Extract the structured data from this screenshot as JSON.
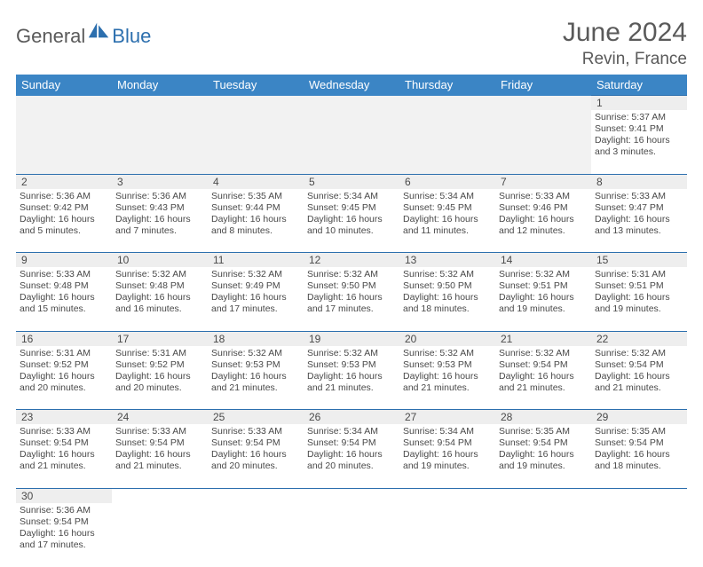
{
  "brand": {
    "part1": "General",
    "part2": "Blue"
  },
  "header": {
    "month": "June 2024",
    "location": "Revin, France"
  },
  "colors": {
    "header_bg": "#3b85c5",
    "header_text": "#ffffff",
    "rule": "#2c6fae",
    "daynum_bg": "#eeeeee",
    "text": "#494949",
    "logo_gray": "#5a5a5a",
    "logo_blue": "#2c6fae"
  },
  "dow": [
    "Sunday",
    "Monday",
    "Tuesday",
    "Wednesday",
    "Thursday",
    "Friday",
    "Saturday"
  ],
  "grid": {
    "rows": 6,
    "cols": 7,
    "first_day_index": 6,
    "days_in_month": 30
  },
  "days": {
    "1": {
      "sunrise": "5:37 AM",
      "sunset": "9:41 PM",
      "daylight": "16 hours and 3 minutes."
    },
    "2": {
      "sunrise": "5:36 AM",
      "sunset": "9:42 PM",
      "daylight": "16 hours and 5 minutes."
    },
    "3": {
      "sunrise": "5:36 AM",
      "sunset": "9:43 PM",
      "daylight": "16 hours and 7 minutes."
    },
    "4": {
      "sunrise": "5:35 AM",
      "sunset": "9:44 PM",
      "daylight": "16 hours and 8 minutes."
    },
    "5": {
      "sunrise": "5:34 AM",
      "sunset": "9:45 PM",
      "daylight": "16 hours and 10 minutes."
    },
    "6": {
      "sunrise": "5:34 AM",
      "sunset": "9:45 PM",
      "daylight": "16 hours and 11 minutes."
    },
    "7": {
      "sunrise": "5:33 AM",
      "sunset": "9:46 PM",
      "daylight": "16 hours and 12 minutes."
    },
    "8": {
      "sunrise": "5:33 AM",
      "sunset": "9:47 PM",
      "daylight": "16 hours and 13 minutes."
    },
    "9": {
      "sunrise": "5:33 AM",
      "sunset": "9:48 PM",
      "daylight": "16 hours and 15 minutes."
    },
    "10": {
      "sunrise": "5:32 AM",
      "sunset": "9:48 PM",
      "daylight": "16 hours and 16 minutes."
    },
    "11": {
      "sunrise": "5:32 AM",
      "sunset": "9:49 PM",
      "daylight": "16 hours and 17 minutes."
    },
    "12": {
      "sunrise": "5:32 AM",
      "sunset": "9:50 PM",
      "daylight": "16 hours and 17 minutes."
    },
    "13": {
      "sunrise": "5:32 AM",
      "sunset": "9:50 PM",
      "daylight": "16 hours and 18 minutes."
    },
    "14": {
      "sunrise": "5:32 AM",
      "sunset": "9:51 PM",
      "daylight": "16 hours and 19 minutes."
    },
    "15": {
      "sunrise": "5:31 AM",
      "sunset": "9:51 PM",
      "daylight": "16 hours and 19 minutes."
    },
    "16": {
      "sunrise": "5:31 AM",
      "sunset": "9:52 PM",
      "daylight": "16 hours and 20 minutes."
    },
    "17": {
      "sunrise": "5:31 AM",
      "sunset": "9:52 PM",
      "daylight": "16 hours and 20 minutes."
    },
    "18": {
      "sunrise": "5:32 AM",
      "sunset": "9:53 PM",
      "daylight": "16 hours and 21 minutes."
    },
    "19": {
      "sunrise": "5:32 AM",
      "sunset": "9:53 PM",
      "daylight": "16 hours and 21 minutes."
    },
    "20": {
      "sunrise": "5:32 AM",
      "sunset": "9:53 PM",
      "daylight": "16 hours and 21 minutes."
    },
    "21": {
      "sunrise": "5:32 AM",
      "sunset": "9:54 PM",
      "daylight": "16 hours and 21 minutes."
    },
    "22": {
      "sunrise": "5:32 AM",
      "sunset": "9:54 PM",
      "daylight": "16 hours and 21 minutes."
    },
    "23": {
      "sunrise": "5:33 AM",
      "sunset": "9:54 PM",
      "daylight": "16 hours and 21 minutes."
    },
    "24": {
      "sunrise": "5:33 AM",
      "sunset": "9:54 PM",
      "daylight": "16 hours and 21 minutes."
    },
    "25": {
      "sunrise": "5:33 AM",
      "sunset": "9:54 PM",
      "daylight": "16 hours and 20 minutes."
    },
    "26": {
      "sunrise": "5:34 AM",
      "sunset": "9:54 PM",
      "daylight": "16 hours and 20 minutes."
    },
    "27": {
      "sunrise": "5:34 AM",
      "sunset": "9:54 PM",
      "daylight": "16 hours and 19 minutes."
    },
    "28": {
      "sunrise": "5:35 AM",
      "sunset": "9:54 PM",
      "daylight": "16 hours and 19 minutes."
    },
    "29": {
      "sunrise": "5:35 AM",
      "sunset": "9:54 PM",
      "daylight": "16 hours and 18 minutes."
    },
    "30": {
      "sunrise": "5:36 AM",
      "sunset": "9:54 PM",
      "daylight": "16 hours and 17 minutes."
    }
  },
  "labels": {
    "sunrise": "Sunrise:",
    "sunset": "Sunset:",
    "daylight": "Daylight:"
  }
}
